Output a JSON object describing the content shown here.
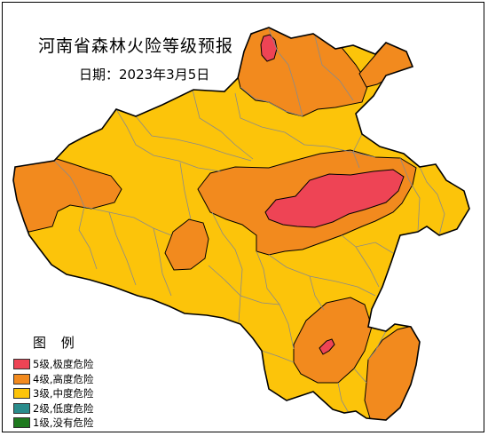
{
  "title": "河南省森林火险等级预报",
  "date_line": "日期：2023年3月5日",
  "legend": {
    "title": "图 例",
    "items": [
      {
        "label": "5级,极度危险",
        "color": "#ee4455"
      },
      {
        "label": "4级,高度危险",
        "color": "#f28a1e"
      },
      {
        "label": "3级,中度危险",
        "color": "#fcc40a"
      },
      {
        "label": "2级,低度危险",
        "color": "#2a8c8c"
      },
      {
        "label": "1级,没有危险",
        "color": "#1f7a1f"
      }
    ]
  },
  "colors": {
    "level5": "#ee4455",
    "level4": "#f28a1e",
    "level3": "#fcc40a",
    "county_border": "#8a8a8a",
    "province_border": "#000000"
  }
}
